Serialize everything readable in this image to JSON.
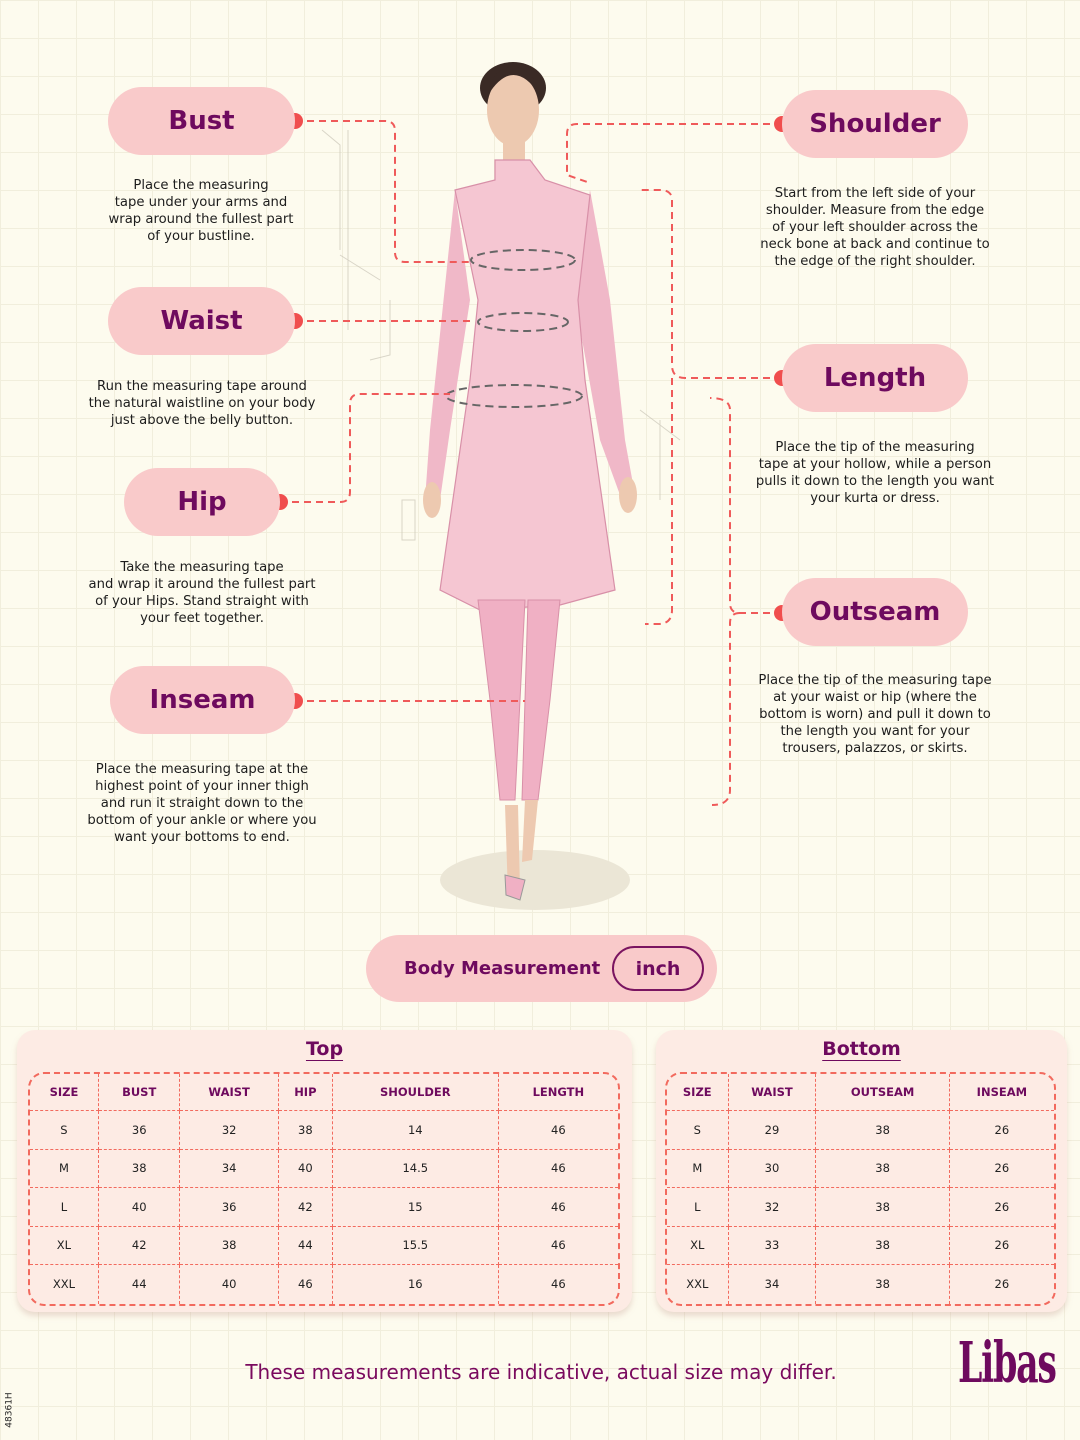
{
  "colors": {
    "accent": "#6e0a5e",
    "pill": "#f9caca",
    "dot": "#f04e4e",
    "dash": "#ef5a5a"
  },
  "measures": [
    {
      "key": "bust",
      "label": "Bust",
      "desc": "Place the measuring\ntape under your arms and\nwrap around the fullest part\nof your bustline."
    },
    {
      "key": "waist",
      "label": "Waist",
      "desc": "Run the measuring tape around\nthe natural waistline on your body\njust above the belly button."
    },
    {
      "key": "hip",
      "label": "Hip",
      "desc": "Take the measuring tape\nand wrap it around the fullest part\nof your Hips. Stand straight with\nyour feet together."
    },
    {
      "key": "inseam",
      "label": "Inseam",
      "desc": "Place the measuring tape at the\nhighest point of your inner thigh\nand run it straight down to the\nbottom of your ankle or where you\nwant your bottoms to end."
    },
    {
      "key": "shoulder",
      "label": "Shoulder",
      "desc": "Start from the left side of your\nshoulder. Measure from the edge\nof your left shoulder across the\nneck bone at back and continue to\nthe edge of the right shoulder."
    },
    {
      "key": "length",
      "label": "Length",
      "desc": "Place the tip of the measuring\ntape at your hollow, while a person\npulls it down to the length you want\nyour kurta or dress."
    },
    {
      "key": "outseam",
      "label": "Outseam",
      "desc": "Place the tip of the measuring tape\nat your waist or hip (where the\nbottom is worn) and pull it down to\nthe length you want for your\ntrousers, palazzos, or skirts."
    }
  ],
  "unit_bar": {
    "label": "Body Measurement",
    "unit": "inch"
  },
  "top_table": {
    "title": "Top",
    "headers": [
      "SIZE",
      "BUST",
      "WAIST",
      "HIP",
      "SHOULDER",
      "LENGTH"
    ],
    "rows": [
      [
        "S",
        "36",
        "32",
        "38",
        "14",
        "46"
      ],
      [
        "M",
        "38",
        "34",
        "40",
        "14.5",
        "46"
      ],
      [
        "L",
        "40",
        "36",
        "42",
        "15",
        "46"
      ],
      [
        "XL",
        "42",
        "38",
        "44",
        "15.5",
        "46"
      ],
      [
        "XXL",
        "44",
        "40",
        "46",
        "16",
        "46"
      ]
    ]
  },
  "bottom_table": {
    "title": "Bottom",
    "headers": [
      "SIZE",
      "WAIST",
      "OUTSEAM",
      "INSEAM"
    ],
    "rows": [
      [
        "S",
        "29",
        "38",
        "26"
      ],
      [
        "M",
        "30",
        "38",
        "26"
      ],
      [
        "L",
        "32",
        "38",
        "26"
      ],
      [
        "XL",
        "33",
        "38",
        "26"
      ],
      [
        "XXL",
        "34",
        "38",
        "26"
      ]
    ]
  },
  "footer": {
    "note": "These measurements are indicative, actual size may differ.",
    "brand": "Libas",
    "code": "48361H"
  }
}
